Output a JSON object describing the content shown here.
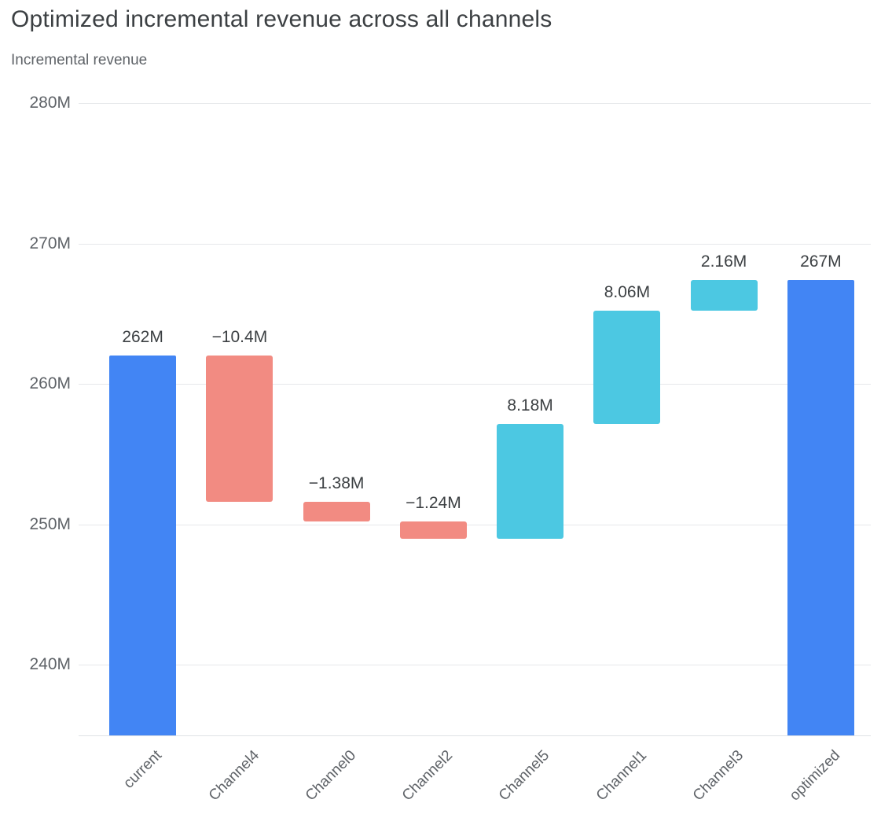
{
  "header": {
    "title": "Optimized incremental revenue across all channels",
    "subtitle": "Incremental revenue"
  },
  "chart_data": {
    "type": "bar",
    "variant": "waterfall",
    "title": "Optimized incremental revenue across all channels",
    "ylabel": "Incremental revenue",
    "xlabel": "",
    "legend": "none",
    "grid": true,
    "categories": [
      "current",
      "Channel4",
      "Channel0",
      "Channel2",
      "Channel5",
      "Channel1",
      "Channel3",
      "optimized"
    ],
    "bars": [
      {
        "label": "current",
        "type": "total",
        "value": 262,
        "display": "262M"
      },
      {
        "label": "Channel4",
        "type": "decrease",
        "value": -10.4,
        "display": "−10.4M"
      },
      {
        "label": "Channel0",
        "type": "decrease",
        "value": -1.38,
        "display": "−1.38M"
      },
      {
        "label": "Channel2",
        "type": "decrease",
        "value": -1.24,
        "display": "−1.24M"
      },
      {
        "label": "Channel5",
        "type": "increase",
        "value": 8.18,
        "display": "8.18M"
      },
      {
        "label": "Channel1",
        "type": "increase",
        "value": 8.06,
        "display": "8.06M"
      },
      {
        "label": "Channel3",
        "type": "increase",
        "value": 2.16,
        "display": "2.16M"
      },
      {
        "label": "optimized",
        "type": "total",
        "value": 267.38,
        "display": "267M"
      }
    ],
    "y_axis": {
      "ticks": [
        "240M",
        "250M",
        "260M",
        "270M",
        "280M"
      ],
      "tick_values": [
        240,
        250,
        260,
        270,
        280
      ],
      "ylim": [
        235,
        283
      ]
    },
    "colors": {
      "total": "#4285f4",
      "increase": "#4cc8e2",
      "decrease": "#f28b82"
    }
  }
}
